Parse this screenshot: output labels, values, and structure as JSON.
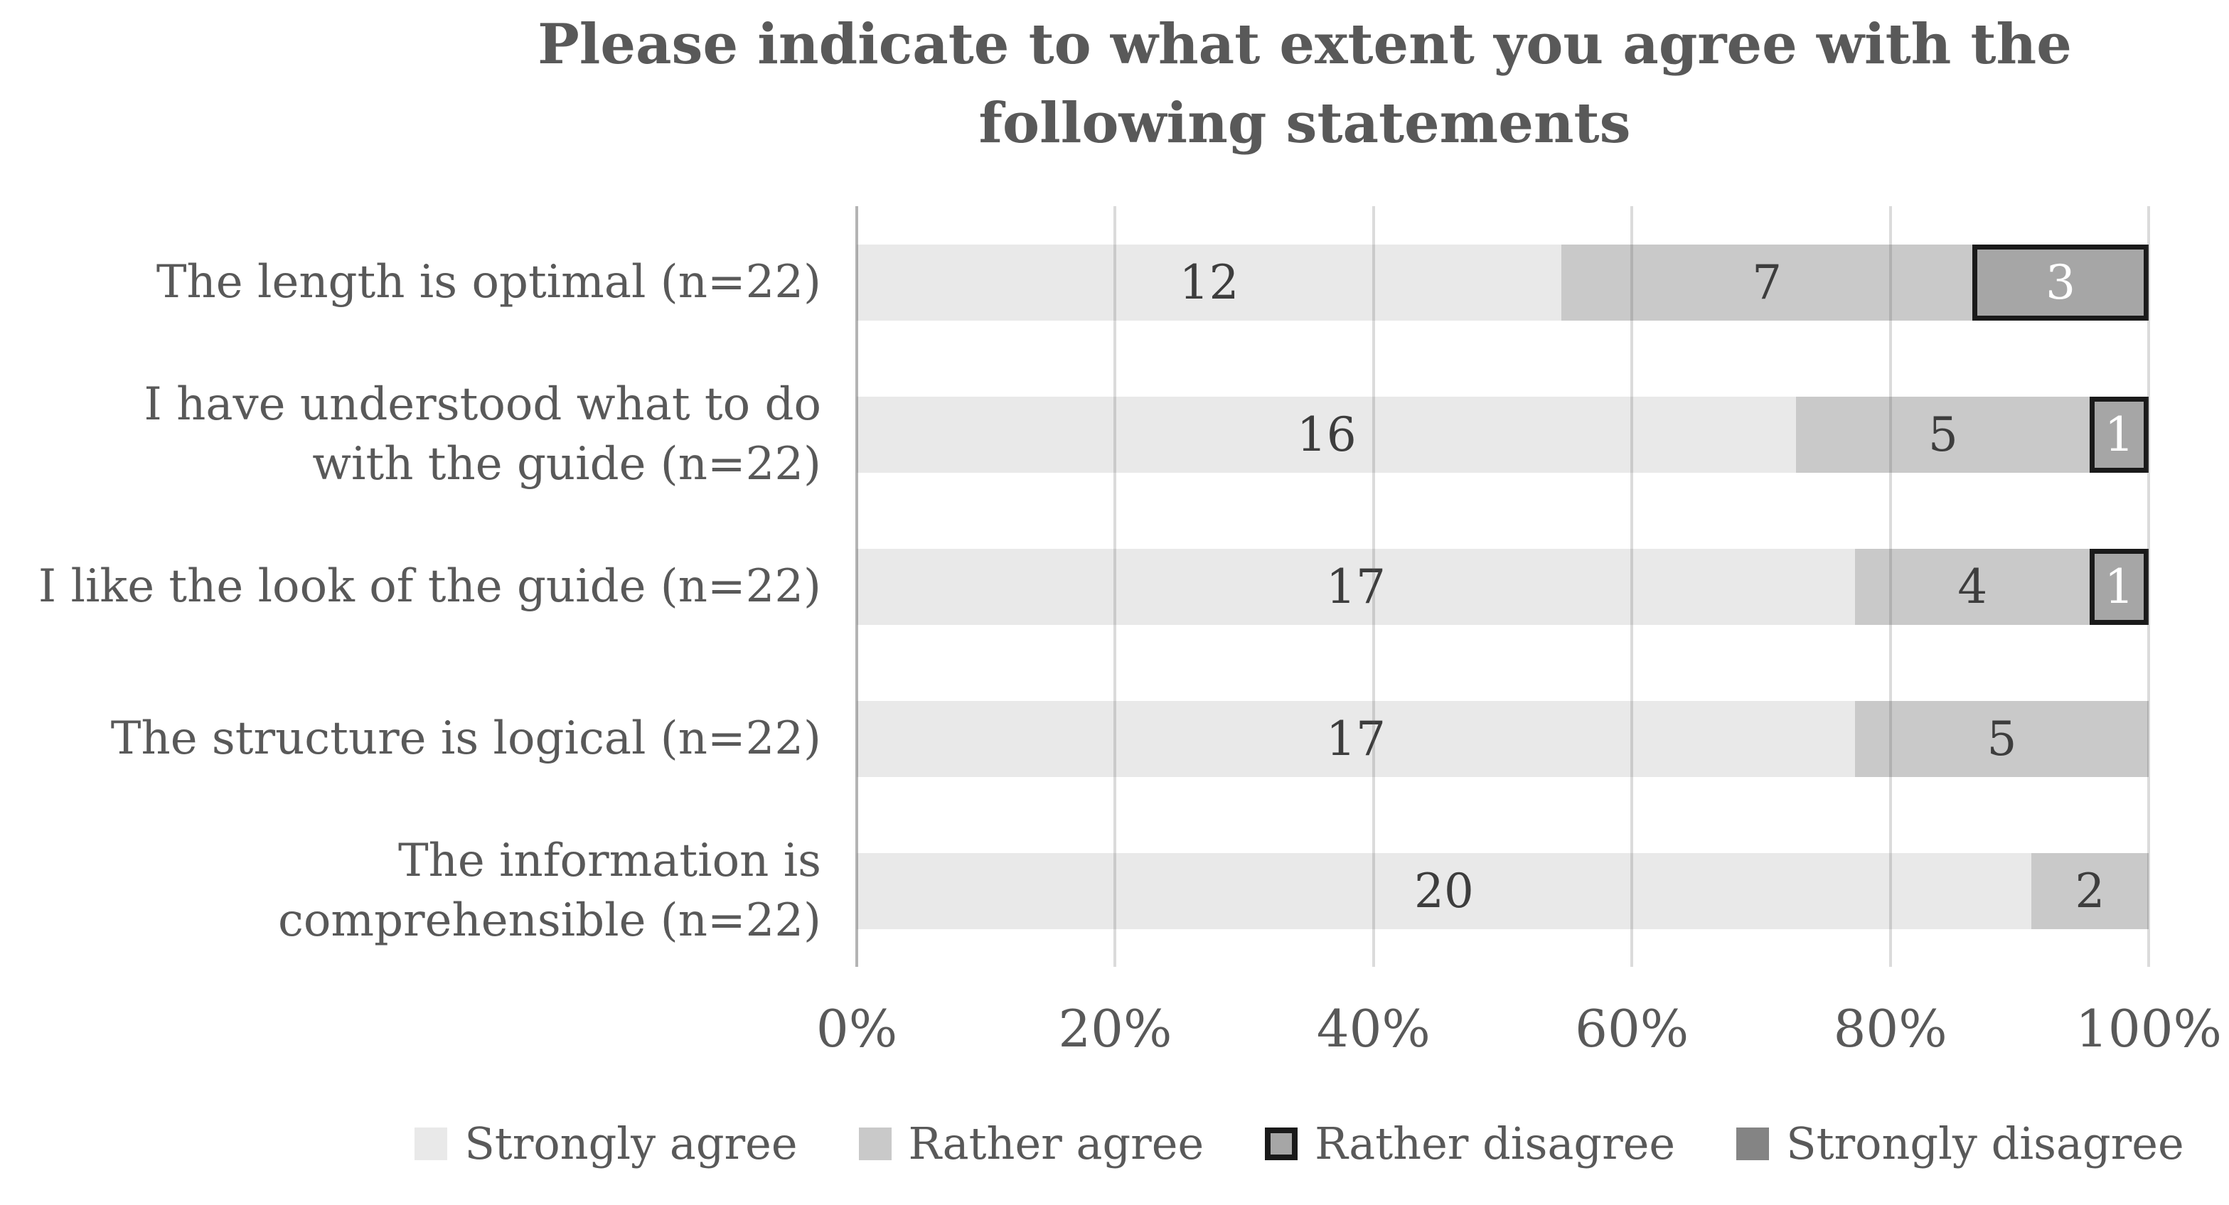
{
  "chart_data": {
    "type": "bar",
    "orientation": "horizontal-stacked",
    "title": "Please indicate to what extent you agree with the following statements",
    "total_per_category": 22,
    "categories": [
      "The length is optimal (n=22)",
      "I have understood what to do with the guide (n=22)",
      "I like the look of the guide (n=22)",
      "The structure is logical (n=22)",
      "The information is comprehensible (n=22)"
    ],
    "categories_lines": [
      [
        "The length is optimal (n=22)"
      ],
      [
        "I have understood what to do",
        "with the guide (n=22)"
      ],
      [
        "I like the look of the guide (n=22)"
      ],
      [
        "The structure is logical (n=22)"
      ],
      [
        "The information is",
        "comprehensible (n=22)"
      ]
    ],
    "series": [
      {
        "name": "Strongly agree",
        "values": [
          12,
          16,
          17,
          17,
          20
        ],
        "color": "#e9e9e9",
        "border": "",
        "label_color": "#3d3d3d"
      },
      {
        "name": "Rather agree",
        "values": [
          7,
          5,
          4,
          5,
          2
        ],
        "color": "#c9c9c9",
        "border": "",
        "label_color": "#3d3d3d"
      },
      {
        "name": "Rather disagree",
        "values": [
          3,
          1,
          1,
          0,
          0
        ],
        "color": "#a6a6a6",
        "border": "#1a1a1a",
        "label_color": "#ffffff"
      },
      {
        "name": "Strongly disagree",
        "values": [
          0,
          0,
          0,
          0,
          0
        ],
        "color": "#848484",
        "border": "",
        "label_color": "#ffffff"
      }
    ],
    "x_tick_labels": [
      "0%",
      "20%",
      "40%",
      "60%",
      "80%",
      "100%"
    ],
    "xlim": [
      0,
      100
    ],
    "axis_unit": "percent",
    "grid": true,
    "legend_position": "bottom",
    "data_labels_shown": true
  },
  "colors": {
    "background": "#ffffff",
    "title_text": "#595959",
    "axis_text": "#595959",
    "gridline": "#d9d9d9",
    "axis_line": "#a9a9a9",
    "strongly_agree": "#e9e9e9",
    "rather_agree": "#c9c9c9",
    "rather_disagree": "#a6a6a6",
    "rather_disagree_border": "#1a1a1a",
    "strongly_disagree": "#848484"
  }
}
